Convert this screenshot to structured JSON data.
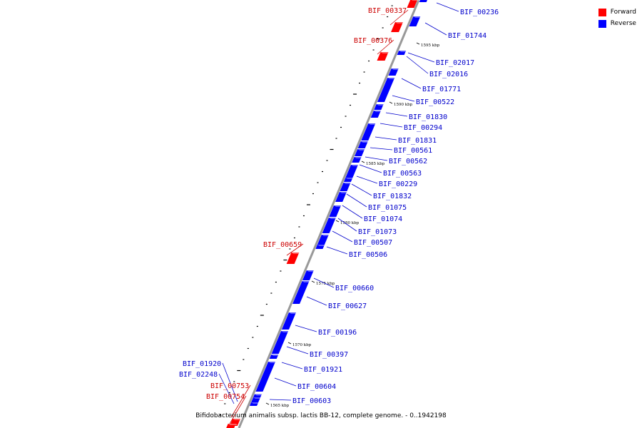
{
  "caption": "Bifidobacterium animalis subsp. lactis BB-12, complete genome. - 0..1942198",
  "legend": [
    {
      "label": "Forward",
      "color": "#ff0000"
    },
    {
      "label": "Reverse",
      "color": "#0000ff"
    }
  ],
  "colors": {
    "forward": "#ff0000",
    "reverse": "#0000ff",
    "forward_label": "#cc0000",
    "reverse_label": "#0000cc",
    "backbone": "#999999"
  },
  "scale_marks": [
    "1595 kbp",
    "1590 kbp",
    "1585 kbp",
    "1580 kbp",
    "1575 kbp",
    "1570 kbp",
    "1565 kbp"
  ],
  "genes": [
    {
      "id": "BIF_00337",
      "strand": "forward"
    },
    {
      "id": "BIF_00376",
      "strand": "forward"
    },
    {
      "id": "BIF_00659",
      "strand": "forward"
    },
    {
      "id": "BIF_00753",
      "strand": "forward"
    },
    {
      "id": "BIF_00754",
      "strand": "forward"
    },
    {
      "id": "BIF_00236",
      "strand": "reverse"
    },
    {
      "id": "BIF_01744",
      "strand": "reverse"
    },
    {
      "id": "BIF_02017",
      "strand": "reverse"
    },
    {
      "id": "BIF_02016",
      "strand": "reverse"
    },
    {
      "id": "BIF_01771",
      "strand": "reverse"
    },
    {
      "id": "BIF_00522",
      "strand": "reverse"
    },
    {
      "id": "BIF_01830",
      "strand": "reverse"
    },
    {
      "id": "BIF_00294",
      "strand": "reverse"
    },
    {
      "id": "BIF_01831",
      "strand": "reverse"
    },
    {
      "id": "BIF_00561",
      "strand": "reverse"
    },
    {
      "id": "BIF_00562",
      "strand": "reverse"
    },
    {
      "id": "BIF_00563",
      "strand": "reverse"
    },
    {
      "id": "BIF_00229",
      "strand": "reverse"
    },
    {
      "id": "BIF_01832",
      "strand": "reverse"
    },
    {
      "id": "BIF_01075",
      "strand": "reverse"
    },
    {
      "id": "BIF_01074",
      "strand": "reverse"
    },
    {
      "id": "BIF_01073",
      "strand": "reverse"
    },
    {
      "id": "BIF_00507",
      "strand": "reverse"
    },
    {
      "id": "BIF_00506",
      "strand": "reverse"
    },
    {
      "id": "BIF_00660",
      "strand": "reverse"
    },
    {
      "id": "BIF_00627",
      "strand": "reverse"
    },
    {
      "id": "BIF_00196",
      "strand": "reverse"
    },
    {
      "id": "BIF_00397",
      "strand": "reverse"
    },
    {
      "id": "BIF_01921",
      "strand": "reverse"
    },
    {
      "id": "BIF_00604",
      "strand": "reverse"
    },
    {
      "id": "BIF_00603",
      "strand": "reverse"
    },
    {
      "id": "BIF_01920",
      "strand": "reverse"
    },
    {
      "id": "BIF_02248",
      "strand": "reverse"
    }
  ]
}
